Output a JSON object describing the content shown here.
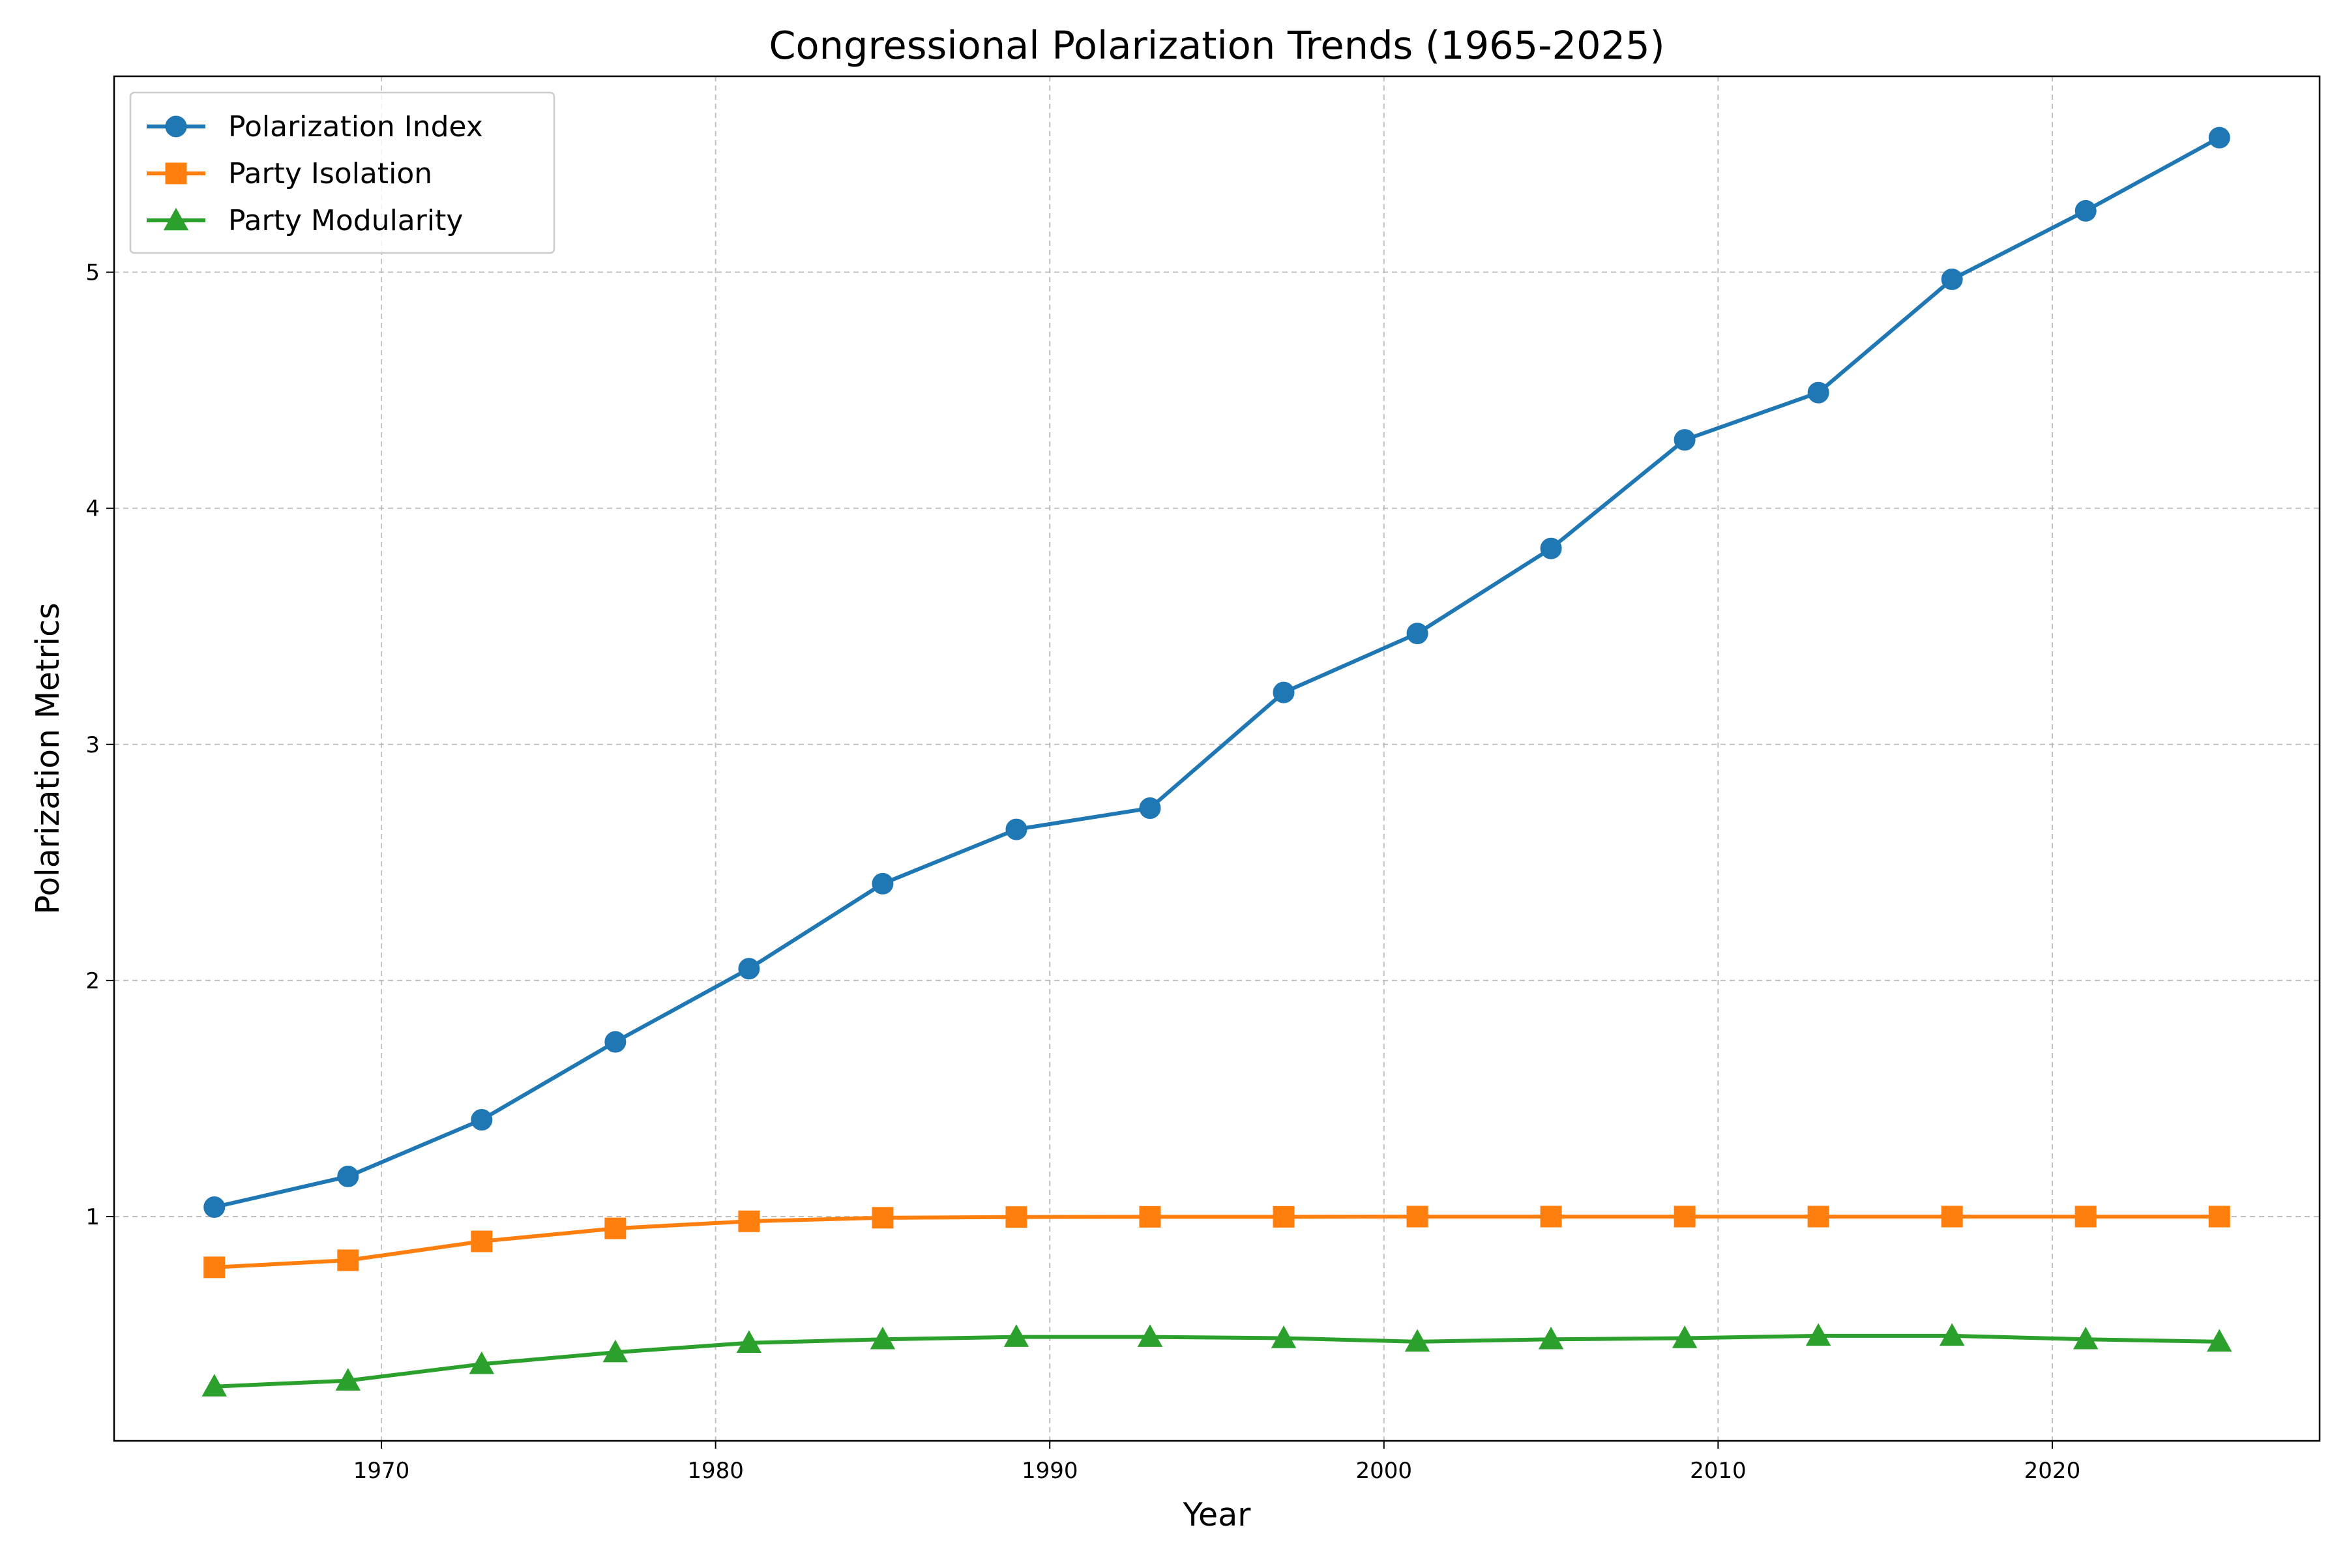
{
  "chart_data": {
    "type": "line",
    "title": "Congressional Polarization Trends (1965-2025)",
    "xlabel": "Year",
    "ylabel": "Polarization Metrics",
    "x": [
      1965,
      1969,
      1973,
      1977,
      1981,
      1985,
      1989,
      1993,
      1997,
      2001,
      2005,
      2009,
      2013,
      2017,
      2021,
      2025
    ],
    "xlim": [
      1962,
      2028
    ],
    "ylim": [
      0.05,
      5.83
    ],
    "xticks": [
      1970,
      1980,
      1990,
      2000,
      2010,
      2020
    ],
    "yticks": [
      1,
      2,
      3,
      4,
      5
    ],
    "grid": true,
    "legend_position": "top-left",
    "series": [
      {
        "name": "Polarization Index",
        "color": "#1f77b4",
        "marker": "circle",
        "values": [
          1.04,
          1.17,
          1.41,
          1.74,
          2.05,
          2.41,
          2.64,
          2.73,
          3.22,
          3.47,
          3.83,
          4.29,
          4.49,
          4.97,
          5.26,
          5.57
        ]
      },
      {
        "name": "Party Isolation",
        "color": "#ff7f0e",
        "marker": "square",
        "values": [
          0.785,
          0.815,
          0.895,
          0.95,
          0.98,
          0.995,
          0.998,
          0.999,
          0.999,
          1.0,
          1.0,
          1.0,
          1.0,
          1.0,
          1.0,
          1.0
        ]
      },
      {
        "name": "Party Modularity",
        "color": "#2ca02c",
        "marker": "triangle",
        "values": [
          0.28,
          0.305,
          0.375,
          0.425,
          0.465,
          0.48,
          0.49,
          0.49,
          0.485,
          0.47,
          0.48,
          0.485,
          0.495,
          0.495,
          0.48,
          0.47
        ]
      }
    ]
  }
}
